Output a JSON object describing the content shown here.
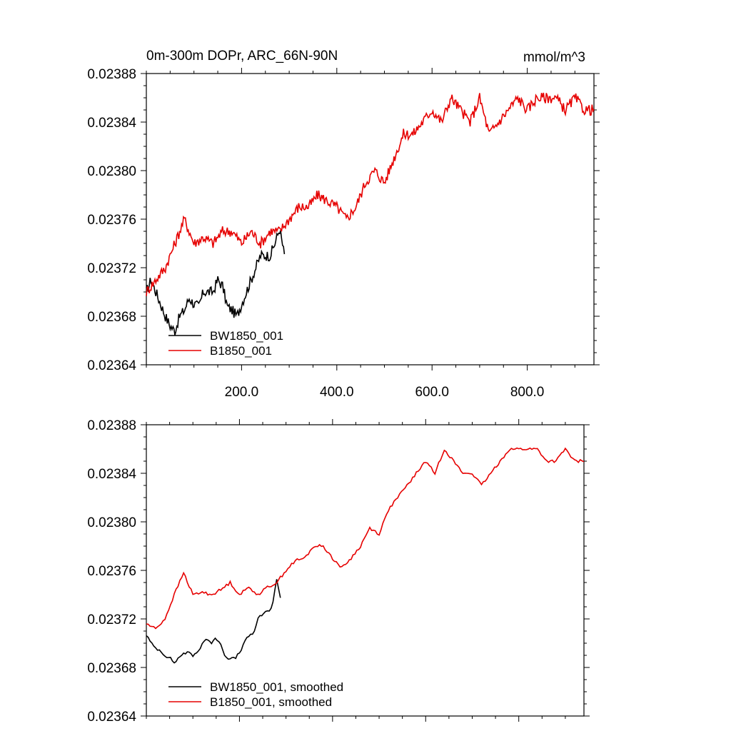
{
  "chart_data": [
    {
      "type": "line",
      "title": "0m-300m DOPr, ARC_66N-90N",
      "units": "mmol/m^3",
      "xlim": [
        0,
        940
      ],
      "ylim": [
        0.02364,
        0.02388
      ],
      "x_ticks": [
        200,
        400,
        600,
        800
      ],
      "x_tick_labels": [
        "200.0",
        "400.0",
        "600.0",
        "800.0"
      ],
      "y_ticks": [
        0.02364,
        0.02368,
        0.02372,
        0.02376,
        0.0238,
        0.02384,
        0.02388
      ],
      "y_tick_labels": [
        "0.02364",
        "0.02368",
        "0.02372",
        "0.02376",
        "0.02380",
        "0.02384",
        "0.02388"
      ],
      "legend": "bottom-left",
      "series": [
        {
          "name": "BW1850_001",
          "color": "#000000",
          "x": [
            0,
            10,
            20,
            30,
            40,
            50,
            60,
            70,
            80,
            90,
            100,
            110,
            120,
            130,
            140,
            150,
            160,
            170,
            180,
            190,
            200,
            210,
            220,
            230,
            240,
            250,
            260,
            270,
            280,
            290
          ],
          "values": [
            0.0237,
            0.02371,
            0.0237,
            0.02369,
            0.02368,
            0.023672,
            0.023668,
            0.02368,
            0.023685,
            0.023695,
            0.02369,
            0.023688,
            0.0237,
            0.0237,
            0.0237,
            0.02371,
            0.023705,
            0.023688,
            0.023685,
            0.02368,
            0.02369,
            0.0237,
            0.02371,
            0.02372,
            0.02373,
            0.02373,
            0.02373,
            0.02374,
            0.023752,
            0.02373
          ]
        },
        {
          "name": "B1850_001",
          "color": "#e60000",
          "x": [
            0,
            20,
            40,
            60,
            80,
            100,
            120,
            140,
            160,
            180,
            200,
            220,
            240,
            260,
            280,
            300,
            320,
            340,
            360,
            380,
            400,
            420,
            440,
            460,
            480,
            500,
            520,
            540,
            560,
            580,
            600,
            620,
            640,
            660,
            680,
            700,
            720,
            740,
            760,
            780,
            800,
            820,
            840,
            860,
            880,
            900,
            920,
            940
          ],
          "values": [
            0.0237,
            0.02371,
            0.02372,
            0.02374,
            0.02376,
            0.02374,
            0.023745,
            0.02374,
            0.02375,
            0.02375,
            0.02374,
            0.02375,
            0.02374,
            0.02375,
            0.02375,
            0.02376,
            0.02377,
            0.02377,
            0.02378,
            0.023775,
            0.02377,
            0.02376,
            0.02377,
            0.02379,
            0.0238,
            0.02379,
            0.02381,
            0.02383,
            0.02383,
            0.02384,
            0.02385,
            0.02384,
            0.02386,
            0.02385,
            0.02384,
            0.02386,
            0.02383,
            0.02384,
            0.02385,
            0.02386,
            0.02385,
            0.02386,
            0.02386,
            0.02386,
            0.02385,
            0.02386,
            0.02385,
            0.02385
          ]
        }
      ]
    },
    {
      "type": "line",
      "title": "",
      "xlim": [
        0,
        940
      ],
      "ylim": [
        0.02364,
        0.02388
      ],
      "x_ticks": [
        200,
        400,
        600,
        800
      ],
      "y_ticks": [
        0.02364,
        0.02368,
        0.02372,
        0.02376,
        0.0238,
        0.02384,
        0.02388
      ],
      "y_tick_labels": [
        "0.02364",
        "0.02368",
        "0.02372",
        "0.02376",
        "0.02380",
        "0.02384",
        "0.02388"
      ],
      "legend": "bottom-left",
      "series": [
        {
          "name": "BW1850_001, smoothed",
          "color": "#000000",
          "x": [
            0,
            10,
            20,
            30,
            40,
            50,
            60,
            70,
            80,
            90,
            100,
            110,
            120,
            130,
            140,
            150,
            160,
            170,
            180,
            190,
            200,
            210,
            220,
            230,
            240,
            250,
            260,
            270,
            280,
            290
          ],
          "values": [
            0.023707,
            0.0237,
            0.023696,
            0.023694,
            0.02369,
            0.023688,
            0.023684,
            0.023688,
            0.023692,
            0.023692,
            0.02369,
            0.023692,
            0.0237,
            0.023704,
            0.0237,
            0.023704,
            0.0237,
            0.023688,
            0.023688,
            0.023687,
            0.023692,
            0.0237,
            0.023706,
            0.023708,
            0.02372,
            0.023724,
            0.023726,
            0.02373,
            0.023752,
            0.023735
          ]
        },
        {
          "name": "B1850_001, smoothed",
          "color": "#e60000",
          "x": [
            0,
            20,
            40,
            60,
            80,
            100,
            120,
            140,
            160,
            180,
            200,
            220,
            240,
            260,
            280,
            300,
            320,
            340,
            360,
            380,
            400,
            420,
            440,
            460,
            480,
            500,
            520,
            540,
            560,
            580,
            600,
            620,
            640,
            660,
            680,
            700,
            720,
            740,
            760,
            780,
            800,
            820,
            840,
            860,
            880,
            900,
            920,
            940
          ],
          "values": [
            0.023716,
            0.023712,
            0.02372,
            0.02374,
            0.023758,
            0.02374,
            0.023742,
            0.02374,
            0.023744,
            0.02375,
            0.02374,
            0.023746,
            0.02374,
            0.023746,
            0.02375,
            0.02376,
            0.023768,
            0.02377,
            0.02378,
            0.02378,
            0.02377,
            0.023762,
            0.02377,
            0.02378,
            0.023795,
            0.02379,
            0.02381,
            0.02382,
            0.02383,
            0.02384,
            0.02385,
            0.02384,
            0.02386,
            0.02385,
            0.02384,
            0.02384,
            0.02383,
            0.02384,
            0.02385,
            0.02386,
            0.02386,
            0.02386,
            0.02386,
            0.02385,
            0.02385,
            0.02386,
            0.02385,
            0.02385
          ]
        }
      ]
    }
  ]
}
